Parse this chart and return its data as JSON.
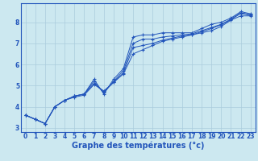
{
  "title": "",
  "xlabel": "Graphe des températures (°c)",
  "ylabel": "",
  "background_color": "#cce8f0",
  "line_color": "#2255bb",
  "grid_color": "#aaccdd",
  "border_color": "#2255bb",
  "xlim": [
    -0.5,
    23.5
  ],
  "ylim": [
    2.8,
    8.9
  ],
  "xticks": [
    0,
    1,
    2,
    3,
    4,
    5,
    6,
    7,
    8,
    9,
    10,
    11,
    12,
    13,
    14,
    15,
    16,
    17,
    18,
    19,
    20,
    21,
    22,
    23
  ],
  "yticks": [
    3,
    4,
    5,
    6,
    7,
    8
  ],
  "lines": [
    [
      3.6,
      3.4,
      3.2,
      4.0,
      4.3,
      4.5,
      4.6,
      5.3,
      4.6,
      5.3,
      5.8,
      7.3,
      7.4,
      7.4,
      7.5,
      7.5,
      7.5,
      7.5,
      7.7,
      7.9,
      8.0,
      8.2,
      8.5,
      8.4
    ],
    [
      3.6,
      3.4,
      3.2,
      4.0,
      4.3,
      4.45,
      4.55,
      5.05,
      4.75,
      5.15,
      5.55,
      6.5,
      6.7,
      6.9,
      7.1,
      7.2,
      7.3,
      7.4,
      7.5,
      7.6,
      7.8,
      8.1,
      8.3,
      8.3
    ],
    [
      3.6,
      3.4,
      3.2,
      4.0,
      4.3,
      4.5,
      4.6,
      5.1,
      4.7,
      5.15,
      5.6,
      6.8,
      6.9,
      7.0,
      7.15,
      7.25,
      7.35,
      7.4,
      7.55,
      7.7,
      7.88,
      8.12,
      8.42,
      8.33
    ],
    [
      3.6,
      3.4,
      3.2,
      4.0,
      4.3,
      4.5,
      4.6,
      5.2,
      4.65,
      5.2,
      5.7,
      7.0,
      7.2,
      7.2,
      7.3,
      7.35,
      7.4,
      7.45,
      7.6,
      7.75,
      7.9,
      8.15,
      8.45,
      8.35
    ]
  ],
  "marker": "+",
  "markersize": 3,
  "linewidth": 0.7,
  "tick_fontsize": 5.5,
  "xlabel_fontsize": 7,
  "xlabel_fontweight": "bold"
}
